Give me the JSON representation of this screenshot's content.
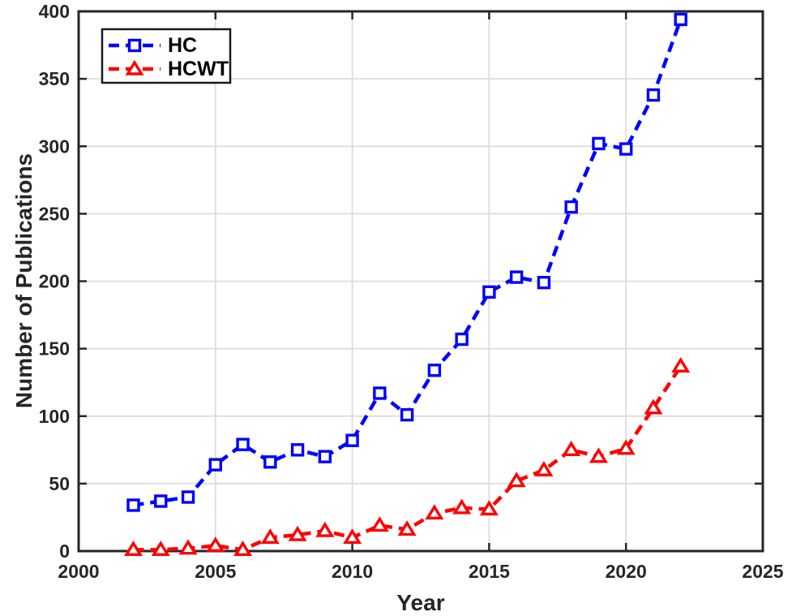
{
  "chart_data": {
    "type": "line",
    "title": "",
    "xlabel": "Year",
    "ylabel": "Number of Publications",
    "x": [
      2002,
      2003,
      2004,
      2005,
      2006,
      2007,
      2008,
      2009,
      2010,
      2011,
      2012,
      2013,
      2014,
      2015,
      2016,
      2017,
      2018,
      2019,
      2020,
      2021,
      2022
    ],
    "series": [
      {
        "name": "HC",
        "color": "#0000FF",
        "marker": "square",
        "line_style": "dashed",
        "values": [
          34,
          37,
          40,
          64,
          79,
          66,
          75,
          70,
          82,
          117,
          101,
          134,
          157,
          192,
          203,
          199,
          255,
          302,
          298,
          338,
          394
        ]
      },
      {
        "name": "HCWT",
        "color": "#FF0000",
        "marker": "triangle-up",
        "line_style": "dashed",
        "values": [
          1,
          1,
          2,
          4,
          1,
          10,
          12,
          15,
          10,
          19,
          16,
          28,
          32,
          31,
          52,
          60,
          75,
          70,
          76,
          106,
          137
        ]
      }
    ],
    "xlim": [
      2000,
      2025
    ],
    "ylim": [
      0,
      400
    ],
    "xticks": [
      2000,
      2005,
      2010,
      2015,
      2020,
      2025
    ],
    "yticks": [
      0,
      50,
      100,
      150,
      200,
      250,
      300,
      350,
      400
    ],
    "grid": true,
    "legend_position": "top-left",
    "colors": {
      "axis": "#262626",
      "grid": "#DCDCDC",
      "background": "#FFFFFF",
      "legend_border": "#1A1A1A"
    }
  }
}
